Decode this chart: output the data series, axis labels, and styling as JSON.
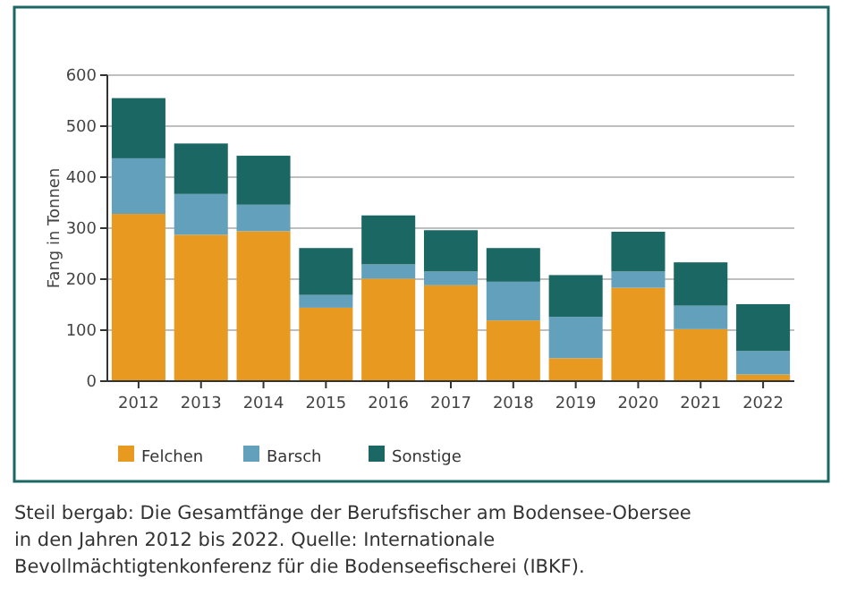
{
  "chart_data": {
    "type": "bar",
    "stacked": true,
    "ylabel": "Fang in Tonnen",
    "categories": [
      "2012",
      "2013",
      "2014",
      "2015",
      "2016",
      "2017",
      "2018",
      "2019",
      "2020",
      "2021",
      "2022"
    ],
    "series": [
      {
        "name": "Felchen",
        "color": "#e8991f",
        "values": [
          328,
          287,
          294,
          144,
          201,
          188,
          119,
          45,
          183,
          102,
          13
        ]
      },
      {
        "name": "Barsch",
        "color": "#63a0bb",
        "values": [
          109,
          80,
          52,
          25,
          28,
          27,
          76,
          81,
          32,
          46,
          46
        ]
      },
      {
        "name": "Sonstige",
        "color": "#1b6763",
        "values": [
          118,
          99,
          96,
          92,
          96,
          81,
          66,
          82,
          78,
          85,
          92
        ]
      }
    ],
    "ylim": [
      0,
      600
    ],
    "yticks": [
      0,
      100,
      200,
      300,
      400,
      500,
      600
    ],
    "grid": "y",
    "legend": "bottom",
    "annotations": [
      "Steil bergab: Die Gesamtfänge der Berufsfischer am Bodensee-Obersee in den Jahren 2012 bis 2022. Quelle: Internationale Bevollmächtigtenkonferenz für die Bodenseefischerei (IBKF)."
    ]
  }
}
